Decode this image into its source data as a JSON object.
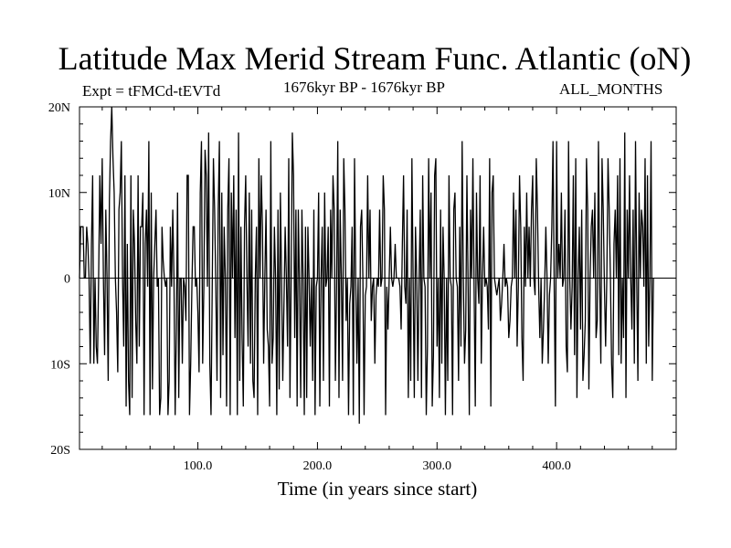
{
  "chart_data": {
    "type": "line",
    "title": "Latitude Max Merid Stream Func. Atlantic (oN)",
    "subtitle_left": "Expt = tFMCd-tEVTd",
    "subtitle_center": "1676kyr BP - 1676kyr BP",
    "subtitle_right": "ALL_MONTHS",
    "xlabel": "Time (in years since start)",
    "ylabel": "",
    "xlim": [
      1,
      500
    ],
    "ylim": [
      -20,
      20
    ],
    "x_ticks": [
      {
        "value": 100,
        "label": "100.0"
      },
      {
        "value": 200,
        "label": "200.0"
      },
      {
        "value": 300,
        "label": "300.0"
      },
      {
        "value": 400,
        "label": "400.0"
      }
    ],
    "y_ticks": [
      {
        "value": 20,
        "label": "20N"
      },
      {
        "value": 10,
        "label": "10N"
      },
      {
        "value": 0,
        "label": "0"
      },
      {
        "value": -10,
        "label": "10S"
      },
      {
        "value": -20,
        "label": "20S"
      }
    ],
    "grid": false,
    "line_color": "#000000",
    "series": [
      {
        "x_start": 1,
        "x_step": 1,
        "values": [
          0,
          6,
          6,
          6,
          0,
          0,
          6,
          4,
          0,
          -10,
          4,
          12,
          -10,
          0,
          -8,
          -10,
          0,
          12,
          4,
          14,
          0,
          -9,
          8,
          0,
          -12,
          9,
          16,
          20,
          14,
          10,
          0,
          -4,
          -11,
          8,
          10,
          16,
          0,
          -8,
          12,
          -15,
          4,
          -12,
          -16,
          12,
          -14,
          8,
          4,
          -5,
          -10,
          12,
          -8,
          6,
          6,
          10,
          -16,
          4,
          8,
          -1,
          16,
          -16,
          10,
          -13,
          0,
          4,
          8,
          -1,
          0,
          -16,
          -14,
          6,
          2,
          0,
          -1,
          0,
          -16,
          -12,
          6,
          -1,
          8,
          0,
          -16,
          -6,
          10,
          -14,
          0,
          0,
          -10,
          0,
          -1,
          -5,
          12,
          12,
          -16,
          -10,
          -1,
          6,
          6,
          -1,
          0,
          -4,
          -11,
          10,
          16,
          -10,
          -1,
          15,
          12,
          -1,
          17,
          -10,
          -16,
          -1,
          14,
          8,
          -1,
          -12,
          8,
          16,
          -14,
          10,
          -9,
          6,
          0,
          -15,
          8,
          14,
          -16,
          10,
          0,
          12,
          -7,
          8,
          -16,
          17,
          -12,
          6,
          -7,
          -15,
          6,
          12,
          0,
          -8,
          10,
          -10,
          8,
          -12,
          -14,
          0,
          6,
          -16,
          14,
          0,
          12,
          6,
          -10,
          0,
          8,
          -6,
          -8,
          -15,
          16,
          -10,
          -7,
          6,
          0,
          -16,
          8,
          -13,
          10,
          0,
          -12,
          -3,
          6,
          0,
          -8,
          14,
          -14,
          0,
          17,
          12,
          -7,
          8,
          -15,
          8,
          -1,
          -14,
          8,
          0,
          -16,
          6,
          -14,
          6,
          0,
          -8,
          0,
          -12,
          8,
          -16,
          -1,
          0,
          10,
          -15,
          0,
          6,
          -12,
          10,
          -1,
          0,
          6,
          -15,
          8,
          0,
          12,
          8,
          -12,
          -1,
          16,
          -14,
          8,
          0,
          -12,
          14,
          8,
          -5,
          0,
          -16,
          -3,
          -1,
          6,
          -16,
          14,
          0,
          -10,
          0,
          -17,
          6,
          8,
          0,
          -16,
          -2,
          -1,
          12,
          0,
          8,
          -5,
          -1,
          0,
          -10,
          -2,
          0,
          -1,
          8,
          -1,
          0,
          12,
          8,
          -16,
          -1,
          -6,
          0,
          6,
          0,
          -1,
          0,
          4,
          0,
          0,
          0,
          -1,
          -6,
          4,
          12,
          -1,
          -3,
          8,
          -14,
          0,
          -12,
          14,
          0,
          -14,
          6,
          0,
          -12,
          0,
          8,
          -14,
          12,
          0,
          -1,
          -16,
          -8,
          14,
          0,
          10,
          -15,
          -9,
          12,
          14,
          -8,
          0,
          -14,
          8,
          -10,
          6,
          0,
          -16,
          0,
          -12,
          12,
          0,
          -1,
          -16,
          8,
          10,
          0,
          -1,
          -12,
          6,
          -8,
          16,
          0,
          -10,
          -6,
          12,
          -1,
          -16,
          8,
          0,
          14,
          -1,
          -15,
          10,
          0,
          -3,
          12,
          -10,
          0,
          6,
          -1,
          0,
          -1,
          -6,
          14,
          -15,
          10,
          12,
          0,
          -1,
          -2,
          -1,
          0,
          -5,
          -3,
          0,
          4,
          -1,
          0,
          -1,
          -7,
          -5,
          -1,
          0,
          10,
          0,
          8,
          -8,
          -1,
          12,
          6,
          -7,
          -12,
          6,
          -1,
          10,
          0,
          6,
          -1,
          8,
          12,
          0,
          -2,
          14,
          8,
          -1,
          -7,
          0,
          -10,
          -6,
          -1,
          6,
          0,
          -10,
          -2,
          0,
          6,
          16,
          -1,
          -15,
          16,
          0,
          4,
          0,
          10,
          -1,
          0,
          8,
          -8,
          -11,
          16,
          0,
          -6,
          -1,
          12,
          -9,
          14,
          -14,
          0,
          6,
          -6,
          8,
          -12,
          -9,
          -5,
          14,
          8,
          -13,
          0,
          6,
          8,
          0,
          10,
          -7,
          -5,
          16,
          0,
          -10,
          14,
          8,
          -1,
          -8,
          0,
          14,
          8,
          0,
          -10,
          -14,
          4,
          8,
          0,
          12,
          -9,
          14,
          -10,
          0,
          -7,
          17,
          -14,
          8,
          0,
          12,
          0,
          -6,
          8,
          -10,
          16,
          0,
          -12,
          10,
          0,
          8,
          6,
          -1,
          14,
          -10,
          12,
          -8,
          0,
          16,
          -12,
          0
        ]
      }
    ]
  }
}
